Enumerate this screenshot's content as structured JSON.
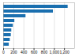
{
  "chart_data": {
    "type": "bar",
    "orientation": "horizontal",
    "categories": [
      null,
      null,
      null,
      null,
      null,
      null,
      null,
      null,
      null
    ],
    "values": [
      1270,
      980,
      440,
      220,
      190,
      160,
      150,
      130,
      110
    ],
    "color": "#1a6faf",
    "xlim": [
      0,
      1400
    ],
    "xticks": [
      0,
      200,
      400,
      600,
      800,
      1000,
      1200
    ],
    "grid": true,
    "tick_labels": "x"
  }
}
